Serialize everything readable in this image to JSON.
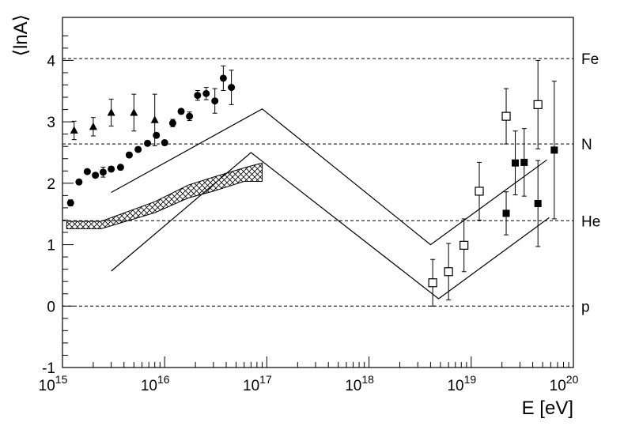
{
  "chart_data": {
    "type": "scatter",
    "title": "",
    "xlabel": "E [eV]",
    "ylabel": "⟨lnA⟩",
    "x_scale": "log",
    "xlim": [
      1000000000000000.0,
      1e+20
    ],
    "ylim": [
      -1,
      4.7
    ],
    "grid": false,
    "legend": "none",
    "x_ticks": [
      {
        "value": 1000000000000000.0,
        "mantissa": "10",
        "exp": "15"
      },
      {
        "value": 1e+16,
        "mantissa": "10",
        "exp": "16"
      },
      {
        "value": 1e+17,
        "mantissa": "10",
        "exp": "17"
      },
      {
        "value": 1e+18,
        "mantissa": "10",
        "exp": "18"
      },
      {
        "value": 1e+19,
        "mantissa": "10",
        "exp": "19"
      },
      {
        "value": 1e+20,
        "mantissa": "10",
        "exp": "20"
      }
    ],
    "y_ticks": [
      {
        "value": -1,
        "label": "-1"
      },
      {
        "value": 0,
        "label": "0"
      },
      {
        "value": 1,
        "label": "1"
      },
      {
        "value": 2,
        "label": "2"
      },
      {
        "value": 3,
        "label": "3"
      },
      {
        "value": 4,
        "label": "4"
      }
    ],
    "reference_lines": [
      {
        "label": "Fe",
        "value": 4.03
      },
      {
        "label": "N",
        "value": 2.64
      },
      {
        "label": "He",
        "value": 1.39
      },
      {
        "label": "p",
        "value": 0
      }
    ],
    "series": [
      {
        "marker": "filled-circle",
        "points": [
          {
            "x": 1200000000000000.0,
            "y": 1.68,
            "err": 0.05
          },
          {
            "x": 1450000000000000.0,
            "y": 2.02,
            "err": 0.03
          },
          {
            "x": 1750000000000000.0,
            "y": 2.19,
            "err": 0.03
          },
          {
            "x": 2100000000000000.0,
            "y": 2.13,
            "err": 0.04
          },
          {
            "x": 2500000000000000.0,
            "y": 2.18,
            "err": 0.08
          },
          {
            "x": 3000000000000000.0,
            "y": 2.23,
            "err": 0.04
          },
          {
            "x": 3700000000000000.0,
            "y": 2.26,
            "err": 0.04
          },
          {
            "x": 4500000000000000.0,
            "y": 2.46,
            "err": 0.04
          },
          {
            "x": 5500000000000000.0,
            "y": 2.55,
            "err": 0.04
          },
          {
            "x": 6800000000000000.0,
            "y": 2.65,
            "err": 0.04
          },
          {
            "x": 8300000000000000.0,
            "y": 2.78,
            "err": 0.04
          },
          {
            "x": 1e+16,
            "y": 2.66,
            "err": 0.04
          },
          {
            "x": 1.2e+16,
            "y": 2.98,
            "err": 0.06
          },
          {
            "x": 1.45e+16,
            "y": 3.17,
            "err": 0.04
          },
          {
            "x": 1.75e+16,
            "y": 3.09,
            "err": 0.07
          },
          {
            "x": 2.1e+16,
            "y": 3.43,
            "err": 0.08
          },
          {
            "x": 2.55e+16,
            "y": 3.46,
            "err": 0.1
          },
          {
            "x": 3.1e+16,
            "y": 3.34,
            "err": 0.2
          },
          {
            "x": 3.75e+16,
            "y": 3.71,
            "err": 0.2
          },
          {
            "x": 4.5e+16,
            "y": 3.56,
            "err": 0.28
          }
        ]
      },
      {
        "marker": "filled-triangle",
        "points": [
          {
            "x": 1300000000000000.0,
            "y": 2.86,
            "err": 0.15
          },
          {
            "x": 2000000000000000.0,
            "y": 2.92,
            "err": 0.15
          },
          {
            "x": 3000000000000000.0,
            "y": 3.15,
            "err": 0.22
          },
          {
            "x": 5000000000000000.0,
            "y": 3.15,
            "err": 0.3
          },
          {
            "x": 8000000000000000.0,
            "y": 3.03,
            "err": 0.42
          }
        ]
      },
      {
        "marker": "open-square",
        "points": [
          {
            "x": 4.2e+18,
            "y": 0.38,
            "err": 0.38
          },
          {
            "x": 6e+18,
            "y": 0.56,
            "err": 0.46
          },
          {
            "x": 8.5e+18,
            "y": 0.99,
            "err": 0.43
          },
          {
            "x": 1.2e+19,
            "y": 1.87,
            "err": 0.47
          },
          {
            "x": 2.2e+19,
            "y": 3.09,
            "err": 0.45
          },
          {
            "x": 4.5e+19,
            "y": 3.28,
            "err": 0.72
          }
        ]
      },
      {
        "marker": "filled-square",
        "points": [
          {
            "x": 2.2e+19,
            "y": 1.51,
            "err": 0.35
          },
          {
            "x": 2.7e+19,
            "y": 2.33,
            "err": 0.52
          },
          {
            "x": 3.3e+19,
            "y": 2.34,
            "err": 0.55
          },
          {
            "x": 4.5e+19,
            "y": 1.67,
            "err": 0.7
          },
          {
            "x": 6.5e+19,
            "y": 2.54,
            "err": 1.12
          }
        ]
      }
    ],
    "model_lines": [
      {
        "points": [
          [
            3000000000000000.0,
            1.85
          ],
          [
            9e+16,
            3.21
          ],
          [
            4e+18,
            1.0
          ],
          [
            5.5e+19,
            2.38
          ]
        ]
      },
      {
        "points": [
          [
            3000000000000000.0,
            0.57
          ],
          [
            7e+16,
            2.5
          ],
          [
            4.8e+18,
            0.12
          ],
          [
            5.8e+19,
            1.44
          ]
        ]
      }
    ],
    "band": {
      "upper": [
        [
          1100000000000000.0,
          1.38
        ],
        [
          2400000000000000.0,
          1.38
        ],
        [
          8000000000000000.0,
          1.7
        ],
        [
          1.7e+16,
          1.97
        ],
        [
          3e+16,
          2.1
        ],
        [
          6e+16,
          2.25
        ],
        [
          9e+16,
          2.33
        ]
      ],
      "lower": [
        [
          1100000000000000.0,
          1.26
        ],
        [
          2400000000000000.0,
          1.26
        ],
        [
          8000000000000000.0,
          1.52
        ],
        [
          1.7e+16,
          1.76
        ],
        [
          3e+16,
          1.87
        ],
        [
          6e+16,
          2.03
        ],
        [
          9e+16,
          2.03
        ]
      ]
    }
  }
}
